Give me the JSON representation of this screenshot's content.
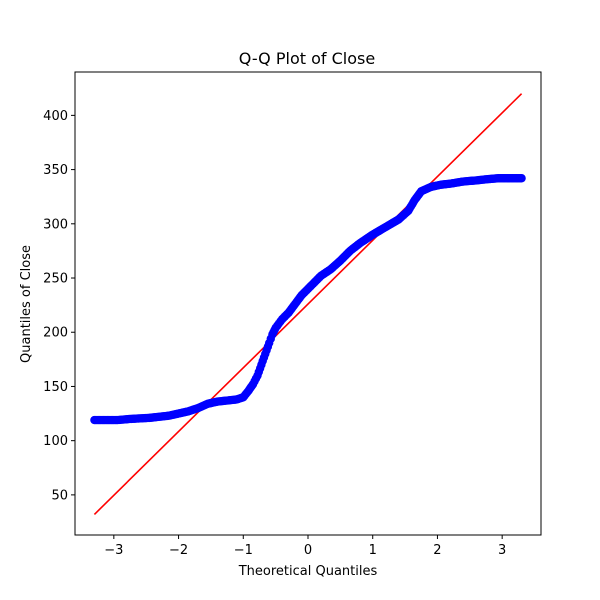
{
  "chart_data": {
    "type": "scatter",
    "title": "Q-Q Plot of Close",
    "xlabel": "Theoretical Quantiles",
    "ylabel": "Quantiles of Close",
    "xlim": [
      -3.6,
      3.6
    ],
    "ylim": [
      13,
      440
    ],
    "x_ticks": [
      -3,
      -2,
      -1,
      0,
      1,
      2,
      3
    ],
    "x_tick_labels": [
      "−3",
      "−2",
      "−1",
      "0",
      "1",
      "2",
      "3"
    ],
    "y_ticks": [
      50,
      100,
      150,
      200,
      250,
      300,
      350,
      400
    ],
    "y_tick_labels": [
      "50",
      "100",
      "150",
      "200",
      "250",
      "300",
      "350",
      "400"
    ],
    "grid": false,
    "legend": "none",
    "series": [
      {
        "kind": "points",
        "color": "#0000ff",
        "x": [
          -3.3,
          -3.06,
          -2.94,
          -2.85,
          -2.75,
          -2.6,
          -2.45,
          -2.3,
          -2.15,
          -2.0,
          -1.85,
          -1.7,
          -1.55,
          -1.4,
          -1.25,
          -1.1,
          -1.0,
          -0.92,
          -0.85,
          -0.78,
          -0.72,
          -0.66,
          -0.6,
          -0.55,
          -0.5,
          -0.45,
          -0.4,
          -0.3,
          -0.2,
          -0.1,
          0.0,
          0.1,
          0.2,
          0.35,
          0.5,
          0.65,
          0.8,
          1.0,
          1.2,
          1.4,
          1.55,
          1.65,
          1.75,
          1.9,
          2.05,
          2.2,
          2.4,
          2.6,
          2.75,
          2.94,
          3.06,
          3.3
        ],
        "y": [
          119,
          119,
          119,
          119.5,
          120,
          120.5,
          121,
          122,
          123,
          125,
          127,
          130,
          134,
          136,
          137,
          138,
          140,
          146,
          152,
          160,
          170,
          180,
          190,
          198,
          204,
          208,
          212,
          218,
          226,
          234,
          240,
          246,
          252,
          258,
          266,
          275,
          282,
          290,
          297,
          304,
          312,
          322,
          330,
          334,
          336,
          337,
          339,
          340,
          341,
          342,
          342,
          342
        ]
      },
      {
        "kind": "line",
        "color": "#ff0000",
        "x": [
          -3.3,
          3.3
        ],
        "y": [
          32,
          420
        ]
      }
    ]
  }
}
